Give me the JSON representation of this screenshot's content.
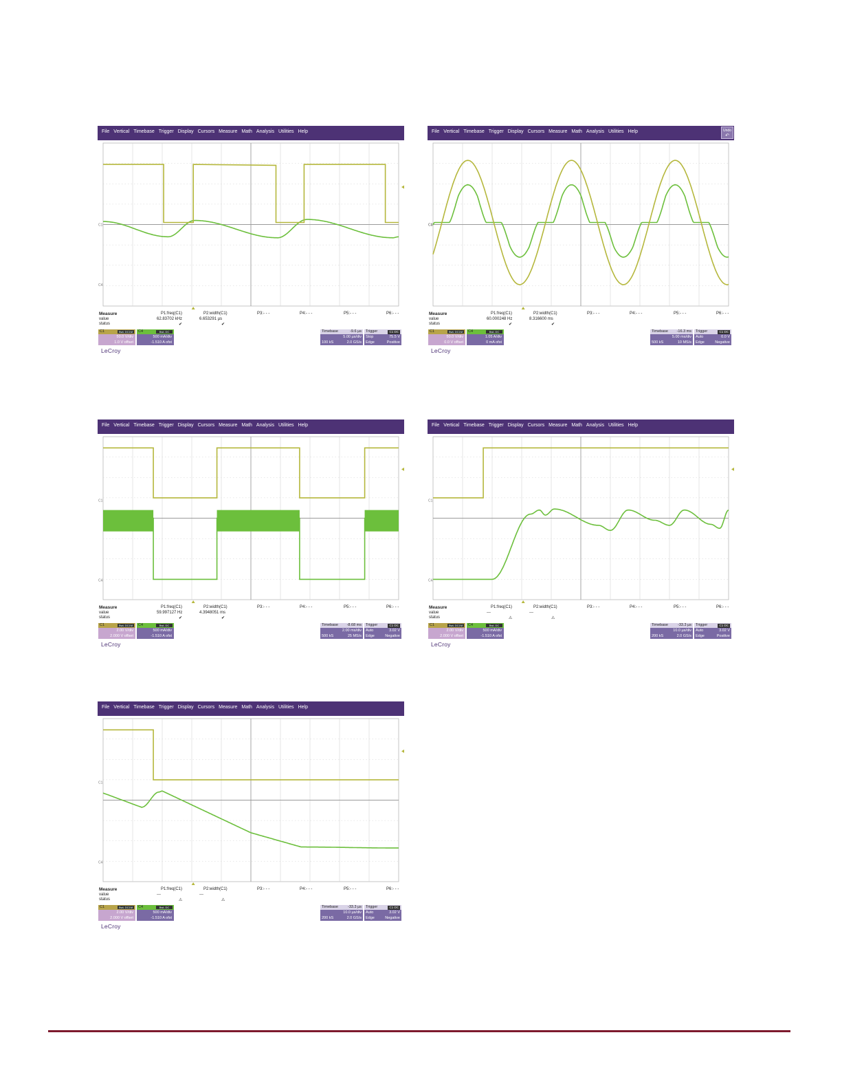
{
  "menu_items": [
    "File",
    "Vertical",
    "Timebase",
    "Trigger",
    "Display",
    "Cursors",
    "Measure",
    "Math",
    "Analysis",
    "Utilities",
    "Help"
  ],
  "undo_label": "Undo",
  "colors": {
    "ch1": "#b5b73c",
    "ch4": "#6cbf3c",
    "menubar": "#4d3275",
    "accent_line": "#7d1a2d"
  },
  "brand": "LeCroy",
  "measure_labels": {
    "title": "Measure",
    "value": "value",
    "status": "status"
  },
  "scopes": [
    {
      "id": "s1",
      "has_undo": false,
      "params": [
        "P1:freq(C1)",
        "P2:width(C1)",
        "P3:- - -",
        "P4:- - -",
        "P5:- - -",
        "P6:- - -"
      ],
      "values": [
        "62.83702 kHz",
        "6.653291 µs"
      ],
      "status": [
        "✔",
        "✔"
      ],
      "ch1": {
        "label": "C1",
        "tag": "BwL DC1M",
        "vdiv": "50.0 V/div",
        "offset": "1.0 V offset"
      },
      "ch4": {
        "label": "C4",
        "tag": "BwL DC",
        "vdiv": "500 mA/div",
        "offset": "-1.510 A ofst"
      },
      "timebase": {
        "label": "Timebase",
        "delay": "-9.6 µs",
        "div": "5.00 µs/div",
        "samples": "100 kS",
        "rate": "2.0 GS/s"
      },
      "trigger": {
        "label": "Trigger",
        "tag": "C1 DC",
        "mode": "Stop",
        "level": "75.5 V",
        "type": "Edge",
        "slope": "Positive"
      },
      "marker_y": 0.27,
      "ch1_label_y": 0.5,
      "ch4_label_y": 0.87
    },
    {
      "id": "s2",
      "has_undo": true,
      "params": [
        "P1:freq(C1)",
        "P2:width(C1)",
        "P3:- - -",
        "P4:- - -",
        "P5:- - -",
        "P6:- - -"
      ],
      "values": [
        "60.000248 Hz",
        "8.316600 ms"
      ],
      "status": [
        "✔",
        "✔"
      ],
      "ch1": {
        "label": "C1",
        "tag": "BwL DC1M",
        "vdiv": "50.0 V/div",
        "offset": "0.0 V offset"
      },
      "ch4": {
        "label": "C4",
        "tag": "BwL DC",
        "vdiv": "1.05 A/div",
        "offset": "0 mA ofst"
      },
      "timebase": {
        "label": "Timebase",
        "delay": "-16.3 ms",
        "div": "5.00 ms/div",
        "samples": "500 kS",
        "rate": "10 MS/s"
      },
      "trigger": {
        "label": "Trigger",
        "tag": "C1 DC",
        "mode": "Auto",
        "level": "0.0 V",
        "type": "Edge",
        "slope": "Negative"
      },
      "marker_y": null,
      "ch1_label_y": 0.5,
      "ch4_label_y": 0.5
    },
    {
      "id": "s3",
      "has_undo": false,
      "params": [
        "P1:freq(C1)",
        "P2:width(C1)",
        "P3:- - -",
        "P4:- - -",
        "P5:- - -",
        "P6:- - -"
      ],
      "values": [
        "59.997127 Hz",
        "4.3948051 ms"
      ],
      "status": [
        "✔",
        "✔"
      ],
      "ch1": {
        "label": "C1",
        "tag": "BwL DC1M",
        "vdiv": "2.00 V/div",
        "offset": "2.000 V offset"
      },
      "ch4": {
        "label": "C4",
        "tag": "BwL DC",
        "vdiv": "500 mA/div",
        "offset": "-1.510 A ofst"
      },
      "timebase": {
        "label": "Timebase",
        "delay": "-8.68 ms",
        "div": "2.00 ms/div",
        "samples": "500 kS",
        "rate": "25 MS/s"
      },
      "trigger": {
        "label": "Trigger",
        "tag": "C1 DC",
        "mode": "Auto",
        "level": "3.02 V",
        "type": "Edge",
        "slope": "Negative"
      },
      "marker_y": 0.2,
      "ch1_label_y": 0.39,
      "ch4_label_y": 0.88
    },
    {
      "id": "s4",
      "has_undo": false,
      "params": [
        "P1:freq(C1)",
        "P2:width(C1)",
        "P3:- - -",
        "P4:- - -",
        "P5:- - -",
        "P6:- - -"
      ],
      "values": [
        "---",
        "---"
      ],
      "status": [
        "⚠",
        "⚠"
      ],
      "ch1": {
        "label": "C1",
        "tag": "BwL DC1M",
        "vdiv": "2.00 V/div",
        "offset": "2.000 V offset"
      },
      "ch4": {
        "label": "C4",
        "tag": "BwL DC",
        "vdiv": "500 mA/div",
        "offset": "-1.510 A ofst"
      },
      "timebase": {
        "label": "Timebase",
        "delay": "-33.3 µs",
        "div": "10.0 µs/div",
        "samples": "200 kS",
        "rate": "2.0 GS/s"
      },
      "trigger": {
        "label": "Trigger",
        "tag": "C1 DC",
        "mode": "Auto",
        "level": "3.02 V",
        "type": "Edge",
        "slope": "Positive"
      },
      "marker_y": 0.2,
      "ch1_label_y": 0.39,
      "ch4_label_y": 0.88
    },
    {
      "id": "s5",
      "has_undo": false,
      "params": [
        "P1:freq(C1)",
        "P2:width(C1)",
        "P3:- - -",
        "P4:- - -",
        "P5:- - -",
        "P6:- - -"
      ],
      "values": [
        "---",
        "---"
      ],
      "status": [
        "⚠",
        "⚠"
      ],
      "ch1": {
        "label": "C1",
        "tag": "BwL DC1M",
        "vdiv": "2.00 V/div",
        "offset": "2.000 V offset"
      },
      "ch4": {
        "label": "C4",
        "tag": "BwL DC",
        "vdiv": "500 mA/div",
        "offset": "-1.510 A ofst"
      },
      "timebase": {
        "label": "Timebase",
        "delay": "-33.3 µs",
        "div": "10.0 µs/div",
        "samples": "200 kS",
        "rate": "2.0 GS/s"
      },
      "trigger": {
        "label": "Trigger",
        "tag": "C1 DC",
        "mode": "Auto",
        "level": "3.02 V",
        "type": "Edge",
        "slope": "Negative"
      },
      "marker_y": 0.2,
      "ch1_label_y": 0.39,
      "ch4_label_y": 0.88
    }
  ]
}
